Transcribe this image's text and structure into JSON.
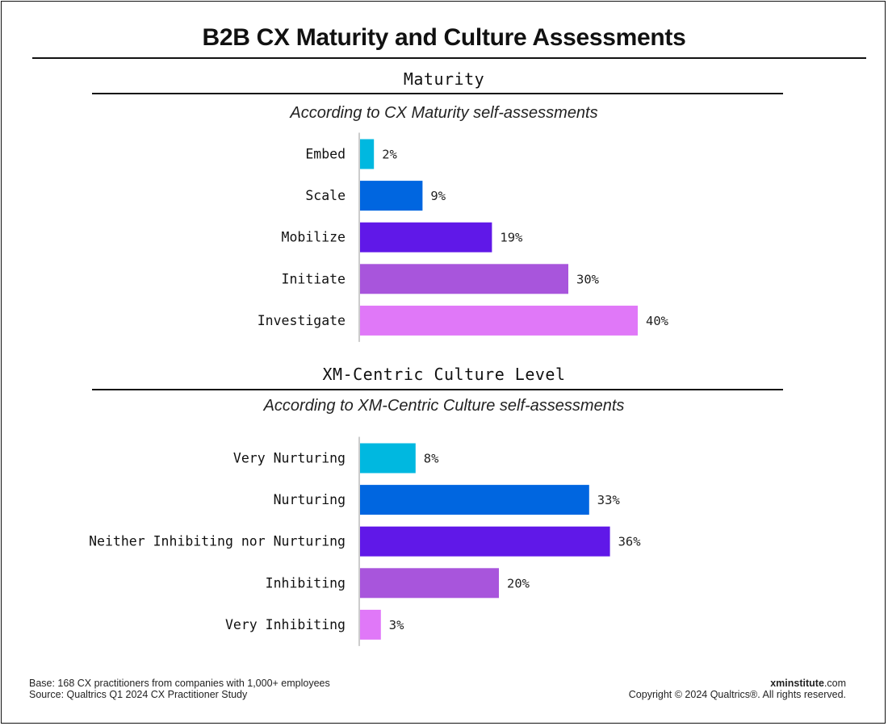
{
  "title": "B2B CX Maturity and Culture Assessments",
  "colors": [
    "#00b8e0",
    "#0066e0",
    "#6018e8",
    "#a855dc",
    "#e078f8"
  ],
  "chart_data": [
    {
      "type": "bar",
      "orientation": "horizontal",
      "title": "Maturity",
      "subtitle": "According to CX Maturity self-assessments",
      "categories": [
        "Embed",
        "Scale",
        "Mobilize",
        "Initiate",
        "Investigate"
      ],
      "values": [
        2,
        9,
        19,
        30,
        40
      ],
      "value_labels": [
        "2%",
        "9%",
        "19%",
        "30%",
        "40%"
      ],
      "unit": "%",
      "xlim": [
        0,
        45
      ]
    },
    {
      "type": "bar",
      "orientation": "horizontal",
      "title": "XM-Centric Culture Level",
      "subtitle": "According to XM-Centric Culture self-assessments",
      "categories": [
        "Very Nurturing",
        "Nurturing",
        "Neither Inhibiting nor Nurturing",
        "Inhibiting",
        "Very Inhibiting"
      ],
      "values": [
        8,
        33,
        36,
        20,
        3
      ],
      "value_labels": [
        "8%",
        "33%",
        "36%",
        "20%",
        "3%"
      ],
      "unit": "%",
      "xlim": [
        0,
        45
      ]
    }
  ],
  "footer": {
    "base": "Base: 168 CX practitioners from companies with 1,000+ employees",
    "source": "Source: Qualtrics Q1 2024 CX Practitioner Study",
    "brand_bold": "xminstitute",
    "brand_rest": ".com",
    "copyright": "Copyright © 2024 Qualtrics®. All rights reserved."
  }
}
